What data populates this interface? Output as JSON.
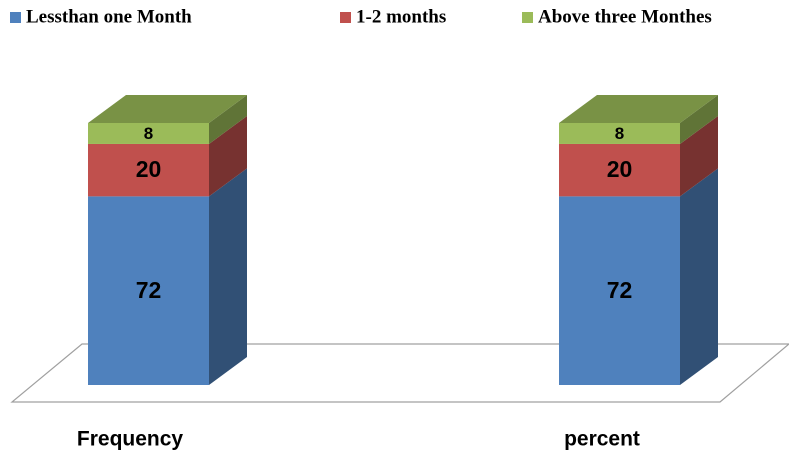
{
  "chart_data": {
    "type": "bar3d_stacked",
    "categories": [
      "Frequency",
      "percent"
    ],
    "series": [
      {
        "name": "Lessthan one Month",
        "color": "#4f81bd",
        "values": [
          72,
          72
        ]
      },
      {
        "name": "1-2 months",
        "color": "#c0504d",
        "values": [
          20,
          20
        ]
      },
      {
        "name": "Above three Monthes",
        "color": "#9bbb59",
        "values": [
          8,
          8
        ]
      }
    ],
    "legend": "top"
  }
}
